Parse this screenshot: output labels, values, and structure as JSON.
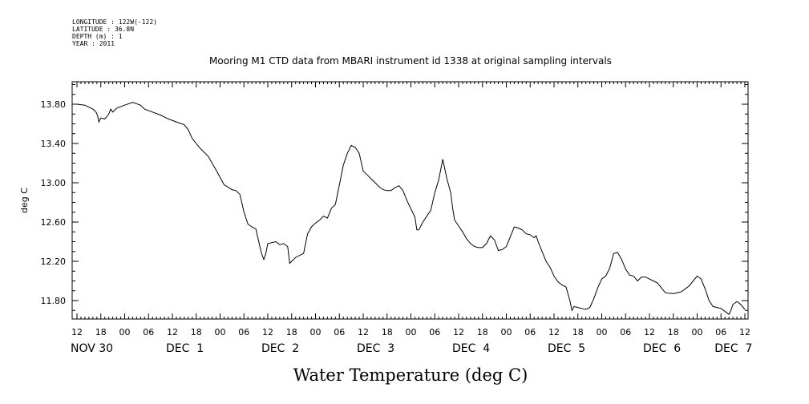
{
  "meta": [
    "LONGITUDE : 122W(-122)",
    "LATITUDE : 36.8N",
    "DEPTH (m) : 1",
    "YEAR : 2011"
  ],
  "chart_data": {
    "type": "line",
    "title": "Mooring M1 CTD data from MBARI instrument id 1338 at original sampling intervals",
    "xlabel": "Water Temperature (deg C)",
    "ylabel": "deg C",
    "ylim": [
      11.64,
      13.98
    ],
    "yticks": [
      11.8,
      12.2,
      12.6,
      13.0,
      13.4,
      13.8
    ],
    "ytick_labels": [
      "11.80",
      "12.20",
      "12.60",
      "13.00",
      "13.40",
      "13.80"
    ],
    "xlim_hours": [
      0,
      168
    ],
    "x_unit": "hours from 12:00 NOV 30 2011",
    "hour_tick_labels": [
      "12",
      "18",
      "00",
      "06",
      "12",
      "18",
      "00",
      "06",
      "12",
      "18",
      "00",
      "06",
      "12",
      "18",
      "00",
      "06",
      "12",
      "18",
      "00",
      "06",
      "12",
      "18",
      "00",
      "06",
      "12",
      "18",
      "00",
      "06",
      "12"
    ],
    "day_labels": [
      {
        "hour": 0,
        "label": "NOV 30"
      },
      {
        "hour": 24,
        "label": "DEC  1"
      },
      {
        "hour": 48,
        "label": "DEC  2"
      },
      {
        "hour": 72,
        "label": "DEC  3"
      },
      {
        "hour": 96,
        "label": "DEC  4"
      },
      {
        "hour": 120,
        "label": "DEC  5"
      },
      {
        "hour": 144,
        "label": "DEC  6"
      },
      {
        "hour": 162,
        "label": "DEC  7"
      }
    ],
    "series": [
      {
        "values": [
          [
            0,
            13.8
          ],
          [
            2,
            13.79
          ],
          [
            4,
            13.75
          ],
          [
            4.8,
            13.72
          ],
          [
            5.2,
            13.68
          ],
          [
            5.5,
            13.62
          ],
          [
            6,
            13.66
          ],
          [
            7,
            13.65
          ],
          [
            8,
            13.7
          ],
          [
            8.5,
            13.75
          ],
          [
            9,
            13.72
          ],
          [
            10,
            13.76
          ],
          [
            12,
            13.79
          ],
          [
            14,
            13.82
          ],
          [
            16,
            13.79
          ],
          [
            17,
            13.75
          ],
          [
            19,
            13.72
          ],
          [
            21,
            13.69
          ],
          [
            23,
            13.65
          ],
          [
            25,
            13.62
          ],
          [
            27,
            13.59
          ],
          [
            28,
            13.54
          ],
          [
            29,
            13.45
          ],
          [
            31,
            13.35
          ],
          [
            33,
            13.27
          ],
          [
            35,
            13.13
          ],
          [
            37,
            12.98
          ],
          [
            39,
            12.93
          ],
          [
            40,
            12.92
          ],
          [
            41,
            12.88
          ],
          [
            42,
            12.7
          ],
          [
            43,
            12.58
          ],
          [
            44,
            12.55
          ],
          [
            45,
            12.53
          ],
          [
            46,
            12.35
          ],
          [
            46.5,
            12.27
          ],
          [
            47,
            12.22
          ],
          [
            47.5,
            12.28
          ],
          [
            48,
            12.38
          ],
          [
            50,
            12.4
          ],
          [
            51,
            12.37
          ],
          [
            52,
            12.38
          ],
          [
            53,
            12.35
          ],
          [
            53.5,
            12.18
          ],
          [
            54,
            12.2
          ],
          [
            55,
            12.24
          ],
          [
            57,
            12.28
          ],
          [
            58,
            12.48
          ],
          [
            59,
            12.55
          ],
          [
            60,
            12.59
          ],
          [
            61,
            12.62
          ],
          [
            62,
            12.66
          ],
          [
            63,
            12.64
          ],
          [
            64,
            12.74
          ],
          [
            65,
            12.78
          ],
          [
            66,
            12.98
          ],
          [
            67,
            13.18
          ],
          [
            68,
            13.3
          ],
          [
            69,
            13.38
          ],
          [
            70,
            13.36
          ],
          [
            71,
            13.3
          ],
          [
            72,
            13.12
          ],
          [
            73,
            13.08
          ],
          [
            74,
            13.04
          ],
          [
            75,
            13.0
          ],
          [
            76,
            12.96
          ],
          [
            77,
            12.93
          ],
          [
            78,
            12.92
          ],
          [
            79,
            12.92
          ],
          [
            80,
            12.95
          ],
          [
            81,
            12.97
          ],
          [
            82,
            12.92
          ],
          [
            83,
            12.82
          ],
          [
            85,
            12.65
          ],
          [
            85.5,
            12.52
          ],
          [
            86,
            12.52
          ],
          [
            87,
            12.6
          ],
          [
            88,
            12.66
          ],
          [
            89,
            12.72
          ],
          [
            90,
            12.9
          ],
          [
            91,
            13.03
          ],
          [
            92,
            13.24
          ],
          [
            93,
            13.05
          ],
          [
            94,
            12.9
          ],
          [
            94.5,
            12.74
          ],
          [
            95,
            12.62
          ],
          [
            96,
            12.56
          ],
          [
            97,
            12.5
          ],
          [
            98,
            12.43
          ],
          [
            99,
            12.38
          ],
          [
            100,
            12.35
          ],
          [
            101,
            12.34
          ],
          [
            102,
            12.34
          ],
          [
            103,
            12.38
          ],
          [
            104,
            12.46
          ],
          [
            105,
            12.42
          ],
          [
            106,
            12.31
          ],
          [
            107,
            12.32
          ],
          [
            108,
            12.35
          ],
          [
            109,
            12.45
          ],
          [
            110,
            12.55
          ],
          [
            111,
            12.54
          ],
          [
            112,
            12.52
          ],
          [
            113,
            12.48
          ],
          [
            114,
            12.47
          ],
          [
            115,
            12.44
          ],
          [
            115.5,
            12.46
          ],
          [
            116,
            12.4
          ],
          [
            117,
            12.3
          ],
          [
            118,
            12.2
          ],
          [
            119,
            12.14
          ],
          [
            120,
            12.05
          ],
          [
            121,
            11.99
          ],
          [
            122,
            11.96
          ],
          [
            123,
            11.94
          ],
          [
            124,
            11.8
          ],
          [
            124.5,
            11.7
          ],
          [
            125,
            11.74
          ],
          [
            126,
            11.73
          ],
          [
            127,
            11.72
          ],
          [
            128,
            11.71
          ],
          [
            129,
            11.73
          ],
          [
            130,
            11.82
          ],
          [
            131,
            11.93
          ],
          [
            132,
            12.02
          ],
          [
            133,
            12.05
          ],
          [
            134,
            12.13
          ],
          [
            135,
            12.28
          ],
          [
            136,
            12.29
          ],
          [
            137,
            12.22
          ],
          [
            138,
            12.12
          ],
          [
            139,
            12.06
          ],
          [
            140,
            12.05
          ],
          [
            141,
            12.0
          ],
          [
            142,
            12.04
          ],
          [
            143,
            12.04
          ],
          [
            144,
            12.02
          ],
          [
            145,
            12.0
          ],
          [
            146,
            11.98
          ],
          [
            147,
            11.93
          ],
          [
            148,
            11.88
          ],
          [
            150,
            11.87
          ],
          [
            152,
            11.89
          ],
          [
            154,
            11.95
          ],
          [
            155,
            12.0
          ],
          [
            156,
            12.05
          ],
          [
            157,
            12.02
          ],
          [
            158,
            11.92
          ],
          [
            159,
            11.8
          ],
          [
            160,
            11.74
          ],
          [
            162,
            11.72
          ],
          [
            164,
            11.66
          ],
          [
            164.5,
            11.7
          ],
          [
            165,
            11.76
          ],
          [
            166,
            11.79
          ],
          [
            167,
            11.76
          ],
          [
            168,
            11.71
          ]
        ]
      }
    ]
  }
}
